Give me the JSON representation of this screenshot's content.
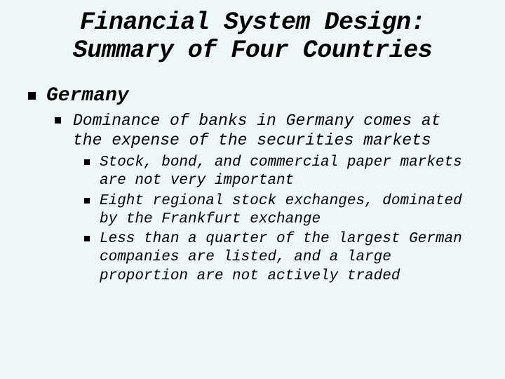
{
  "background_color": "#edf7f7",
  "text_color": "#000000",
  "font_family": "Courier New",
  "font_style": "italic",
  "title": {
    "text": "Financial System Design: Summary of Four Countries",
    "fontsize": 35,
    "weight": "bold",
    "align": "center"
  },
  "bullets": {
    "level1": [
      {
        "text": "Germany",
        "fontsize": 28,
        "weight": "bold",
        "marker": {
          "shape": "square",
          "size": 11,
          "color": "#000000"
        },
        "children": [
          {
            "text": "Dominance of banks in Germany comes at the expense of the securities markets",
            "fontsize": 23,
            "weight": "normal",
            "marker": {
              "shape": "square",
              "size": 9,
              "color": "#000000"
            },
            "children": [
              {
                "text": "Stock, bond, and commercial paper markets are not very important",
                "fontsize": 21,
                "marker": {
                  "shape": "square",
                  "size": 8,
                  "color": "#000000"
                }
              },
              {
                "text": "Eight regional stock exchanges, dominated by the Frankfurt exchange",
                "fontsize": 21,
                "marker": {
                  "shape": "square",
                  "size": 8,
                  "color": "#000000"
                }
              },
              {
                "text": "Less than a quarter of the largest German companies are listed, and a large proportion are not actively traded",
                "fontsize": 21,
                "marker": {
                  "shape": "square",
                  "size": 8,
                  "color": "#000000"
                }
              }
            ]
          }
        ]
      }
    ]
  }
}
